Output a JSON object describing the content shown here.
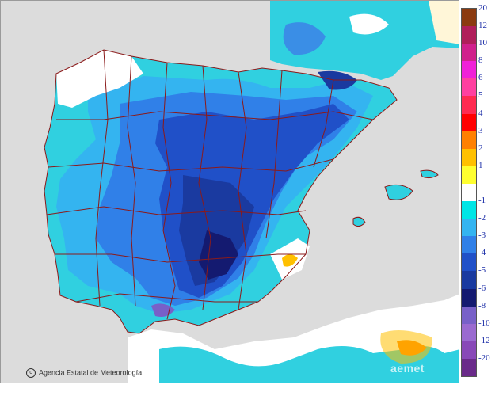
{
  "attribution": "Agencia Estatal de Meteorología",
  "watermark": "aemet",
  "legend": {
    "upper_labels": [
      "20",
      "12",
      "10",
      "8",
      "6",
      "5",
      "4",
      "3",
      "2",
      "1"
    ],
    "lower_labels": [
      "-1",
      "-2",
      "-3",
      "-4",
      "-5",
      "-6",
      "-8",
      "-10",
      "-12",
      "-20"
    ],
    "upper_colors": [
      "#8b3a0f",
      "#b01e5a",
      "#d0208c",
      "#f020d8",
      "#ff40a0",
      "#ff2a50",
      "#ff0000",
      "#ff8000",
      "#ffc000",
      "#ffff30"
    ],
    "neutral_color": "#ffffff",
    "lower_colors": [
      "#00e6e6",
      "#34b4f0",
      "#3080e8",
      "#2050c8",
      "#1a3aa0",
      "#141a70",
      "#7860c8",
      "#9a6ad0",
      "#8848b8",
      "#6a2a8a"
    ]
  },
  "colors": {
    "sea": "#dcdcdc",
    "land_neutral": "#ffffff",
    "borders": "#8b1a1a"
  }
}
